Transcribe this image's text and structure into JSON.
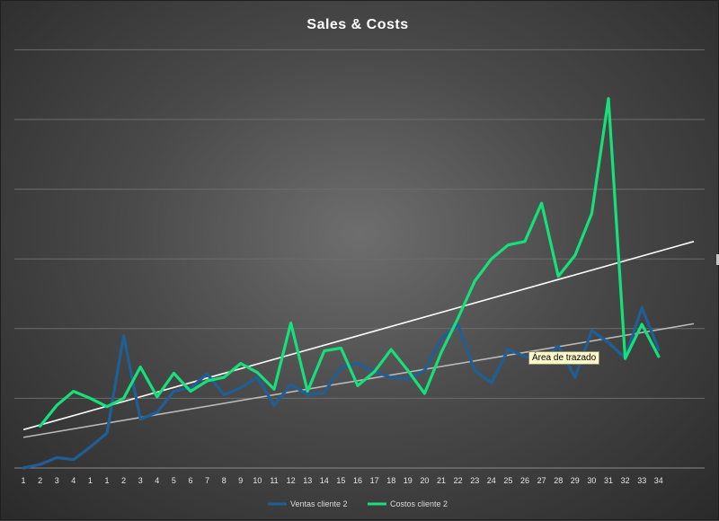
{
  "chart_data": {
    "type": "line",
    "title": "Sales & Costs",
    "categories": [
      "1",
      "2",
      "3",
      "4",
      "1",
      "1",
      "2",
      "3",
      "4",
      "5",
      "6",
      "7",
      "8",
      "9",
      "10",
      "11",
      "12",
      "13",
      "14",
      "15",
      "16",
      "17",
      "18",
      "19",
      "20",
      "21",
      "22",
      "23",
      "24",
      "25",
      "26",
      "27",
      "28",
      "29",
      "30",
      "31",
      "32",
      "33",
      "34"
    ],
    "ylim": [
      0,
      6.7
    ],
    "grid": true,
    "y_tick_labels_shown": false,
    "legend_position": "bottom",
    "series": [
      {
        "name": "Ventas cliente 2",
        "color": "#1f5f96",
        "values": [
          0.0,
          0.05,
          0.15,
          0.12,
          0.3,
          0.5,
          1.9,
          0.7,
          0.8,
          1.1,
          1.15,
          1.35,
          1.05,
          1.15,
          1.3,
          0.9,
          1.2,
          1.05,
          1.08,
          1.45,
          1.5,
          1.38,
          1.3,
          1.28,
          1.4,
          1.85,
          2.05,
          1.4,
          1.22,
          1.7,
          1.6,
          1.55,
          1.75,
          1.3,
          1.97,
          1.8,
          1.58,
          2.3,
          1.7
        ]
      },
      {
        "name": "Costos cliente 2",
        "color": "#16e07a",
        "values": [
          null,
          0.6,
          0.9,
          1.1,
          1.0,
          0.88,
          1.0,
          1.45,
          1.02,
          1.36,
          1.1,
          1.25,
          1.3,
          1.5,
          1.37,
          1.13,
          2.08,
          1.1,
          1.68,
          1.72,
          1.18,
          1.38,
          1.7,
          1.4,
          1.07,
          1.66,
          2.15,
          2.68,
          3.0,
          3.2,
          3.25,
          3.8,
          2.75,
          3.05,
          3.65,
          5.3,
          1.57,
          2.06,
          1.6
        ]
      }
    ],
    "trendlines": [
      {
        "series": "Costos cliente 2",
        "color": "#ffffff",
        "start": 0.55,
        "end": 3.25
      },
      {
        "series": "Ventas cliente 2",
        "color": "#b9b9b9",
        "start": 0.44,
        "end": 2.07
      }
    ],
    "annotations": [
      "Área de trazado"
    ]
  }
}
